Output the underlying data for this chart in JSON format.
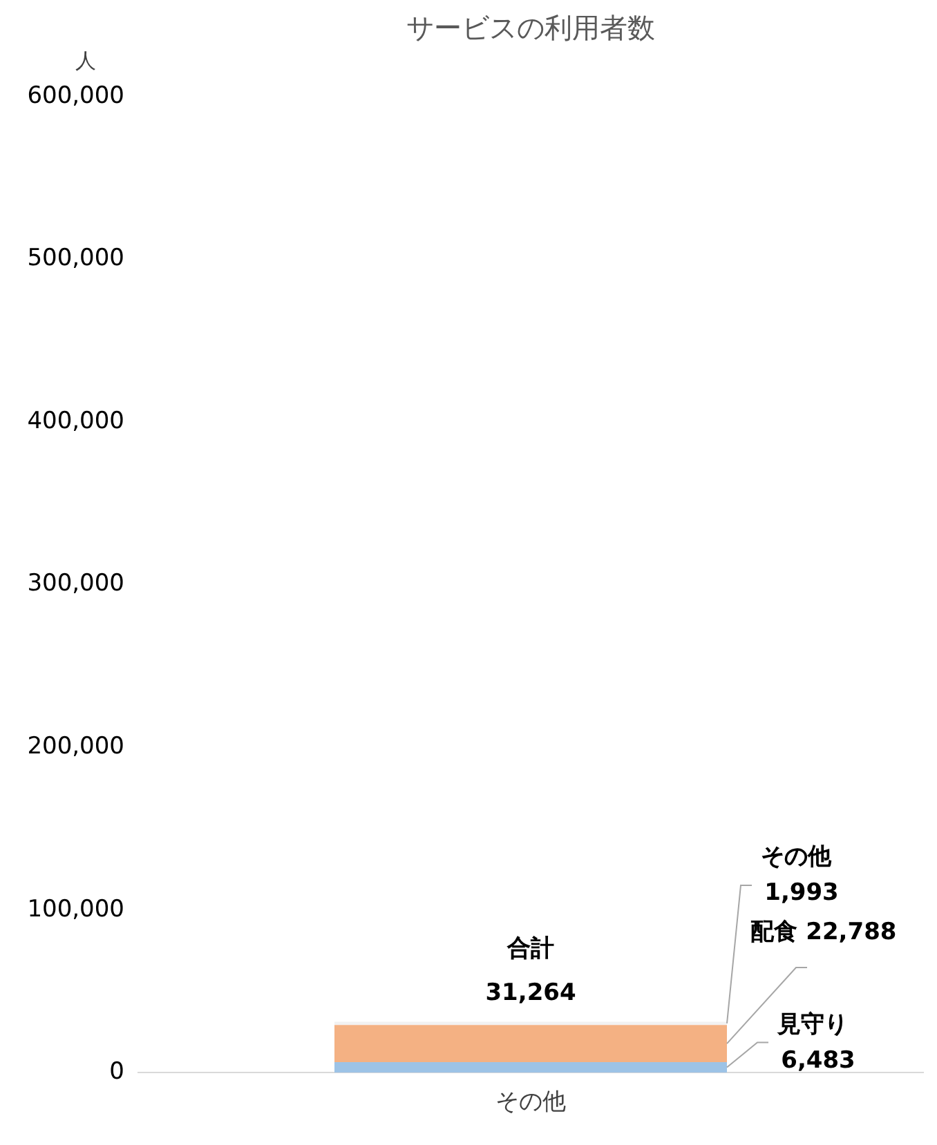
{
  "chart_data": {
    "type": "bar",
    "title": "サービスの利用者数",
    "ylabel": "人",
    "categories": [
      "その他"
    ],
    "stacked": true,
    "series": [
      {
        "name": "見守り",
        "color": "#9dc3e6",
        "values": [
          6483
        ],
        "value_labels": [
          "6,483"
        ]
      },
      {
        "name": "配食",
        "color": "#f4b183",
        "values": [
          22788
        ],
        "value_labels": [
          "22,788"
        ]
      },
      {
        "name": "その他",
        "color": "#f2f2f2",
        "values": [
          1993
        ],
        "value_labels": [
          "1,993"
        ]
      }
    ],
    "ylim": [
      0,
      600000
    ],
    "yticks": [
      {
        "value": 0,
        "label": "0"
      },
      {
        "value": 100000,
        "label": "100,000"
      },
      {
        "value": 200000,
        "label": "200,000"
      },
      {
        "value": 300000,
        "label": "300,000"
      },
      {
        "value": 400000,
        "label": "400,000"
      },
      {
        "value": 500000,
        "label": "500,000"
      },
      {
        "value": 600000,
        "label": "600,000"
      }
    ],
    "grid": false,
    "legend": false,
    "totals": [
      "31,264"
    ],
    "annotations": [
      "合計"
    ]
  }
}
